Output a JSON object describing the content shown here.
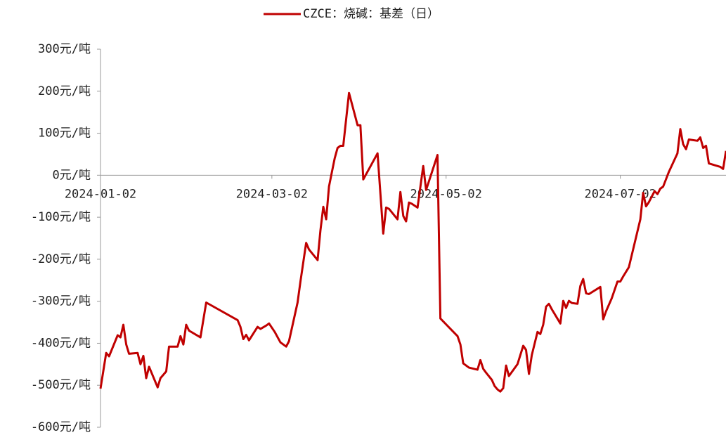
{
  "chart_data": {
    "type": "line",
    "series": [
      {
        "name": "CZCE：烧碱：基差（日）",
        "color": "#c00000",
        "values": [
          -508,
          -423,
          -431,
          -381,
          -386,
          -356,
          -403,
          -425,
          -423,
          -450,
          -430,
          -483,
          -456,
          -505,
          -483,
          -467,
          -408,
          -408,
          -383,
          -403,
          -356,
          -370,
          -386,
          -303,
          -345,
          -361,
          -390,
          -380,
          -393,
          -361,
          -366,
          -358,
          -353,
          -373,
          -398,
          -408,
          -395,
          -303,
          -253,
          -161,
          -177,
          -202,
          -132,
          -75,
          -105,
          -27,
          7,
          40,
          65,
          70,
          70,
          196,
          119,
          119,
          -10,
          52,
          -139,
          -77,
          -80,
          -105,
          -40,
          -97,
          -110,
          -65,
          -68,
          -77,
          22,
          -35,
          48,
          -341,
          -383,
          -403,
          -448,
          -458,
          -463,
          -440,
          -461,
          -470,
          -487,
          -502,
          -510,
          -515,
          -507,
          -453,
          -478,
          -450,
          -406,
          -416,
          -473,
          -428,
          -373,
          -378,
          -356,
          -313,
          -306,
          -319,
          -353,
          -299,
          -316,
          -299,
          -304,
          -306,
          -264,
          -247,
          -281,
          -283,
          -266,
          -343,
          -324,
          -293,
          -253,
          -253,
          -241,
          -219,
          -105,
          -42,
          -74,
          -64,
          -38,
          -45,
          -32,
          -27,
          8,
          52,
          110,
          74,
          62,
          85,
          82,
          90,
          65,
          70,
          28,
          20,
          15,
          58
        ]
      }
    ],
    "x": [
      "2024-01-02",
      "2024-01-04",
      "2024-01-05",
      "2024-01-08",
      "2024-01-09",
      "2024-01-10",
      "2024-01-11",
      "2024-01-12",
      "2024-01-15",
      "2024-01-16",
      "2024-01-17",
      "2024-01-18",
      "2024-01-19",
      "2024-01-22",
      "2024-01-23",
      "2024-01-25",
      "2024-01-26",
      "2024-01-29",
      "2024-01-30",
      "2024-01-31",
      "2024-02-01",
      "2024-02-02",
      "2024-02-06",
      "2024-02-08",
      "2024-02-19",
      "2024-02-20",
      "2024-02-21",
      "2024-02-22",
      "2024-02-23",
      "2024-02-26",
      "2024-02-27",
      "2024-02-29",
      "2024-03-01",
      "2024-03-03",
      "2024-03-05",
      "2024-03-07",
      "2024-03-08",
      "2024-03-11",
      "2024-03-12",
      "2024-03-14",
      "2024-03-15",
      "2024-03-18",
      "2024-03-19",
      "2024-03-20",
      "2024-03-21",
      "2024-03-22",
      "2024-03-23",
      "2024-03-24",
      "2024-03-25",
      "2024-03-26",
      "2024-03-27",
      "2024-03-29",
      "2024-04-01",
      "2024-04-02",
      "2024-04-03",
      "2024-04-08",
      "2024-04-10",
      "2024-04-11",
      "2024-04-12",
      "2024-04-15",
      "2024-04-16",
      "2024-04-17",
      "2024-04-18",
      "2024-04-19",
      "2024-04-20",
      "2024-04-22",
      "2024-04-24",
      "2024-04-25",
      "2024-04-29",
      "2024-04-30",
      "2024-05-06",
      "2024-05-07",
      "2024-05-08",
      "2024-05-10",
      "2024-05-13",
      "2024-05-14",
      "2024-05-15",
      "2024-05-16",
      "2024-05-18",
      "2024-05-19",
      "2024-05-20",
      "2024-05-21",
      "2024-05-22",
      "2024-05-23",
      "2024-05-24",
      "2024-05-27",
      "2024-05-29",
      "2024-05-30",
      "2024-05-31",
      "2024-06-01",
      "2024-06-03",
      "2024-06-04",
      "2024-06-05",
      "2024-06-06",
      "2024-06-07",
      "2024-06-08",
      "2024-06-11",
      "2024-06-12",
      "2024-06-13",
      "2024-06-14",
      "2024-06-15",
      "2024-06-17",
      "2024-06-18",
      "2024-06-19",
      "2024-06-20",
      "2024-06-21",
      "2024-06-25",
      "2024-06-26",
      "2024-06-27",
      "2024-06-29",
      "2024-07-01",
      "2024-07-02",
      "2024-07-03",
      "2024-07-05",
      "2024-07-09",
      "2024-07-10",
      "2024-07-11",
      "2024-07-12",
      "2024-07-14",
      "2024-07-15",
      "2024-07-16",
      "2024-07-17",
      "2024-07-19",
      "2024-07-22",
      "2024-07-23",
      "2024-07-24",
      "2024-07-25",
      "2024-07-26",
      "2024-07-29",
      "2024-07-30",
      "2024-07-31",
      "2024-08-01",
      "2024-08-02",
      "2024-08-06",
      "2024-08-07",
      "2024-08-08"
    ],
    "xlim": [
      "2024-01-02",
      "2024-08-08"
    ],
    "xticks": [
      "2024-01-02",
      "2024-03-02",
      "2024-05-02",
      "2024-07-02"
    ],
    "ylim": [
      -600,
      300
    ],
    "yticks": [
      {
        "value": -600,
        "label": "-600元/吨"
      },
      {
        "value": -500,
        "label": "-500元/吨"
      },
      {
        "value": -400,
        "label": "-400元/吨"
      },
      {
        "value": -300,
        "label": "-300元/吨"
      },
      {
        "value": -200,
        "label": "-200元/吨"
      },
      {
        "value": -100,
        "label": "-100元/吨"
      },
      {
        "value": 0,
        "label": "0元/吨"
      },
      {
        "value": 100,
        "label": "100元/吨"
      },
      {
        "value": 200,
        "label": "200元/吨"
      },
      {
        "value": 300,
        "label": "300元/吨"
      }
    ],
    "legend": "top",
    "grid": false
  }
}
